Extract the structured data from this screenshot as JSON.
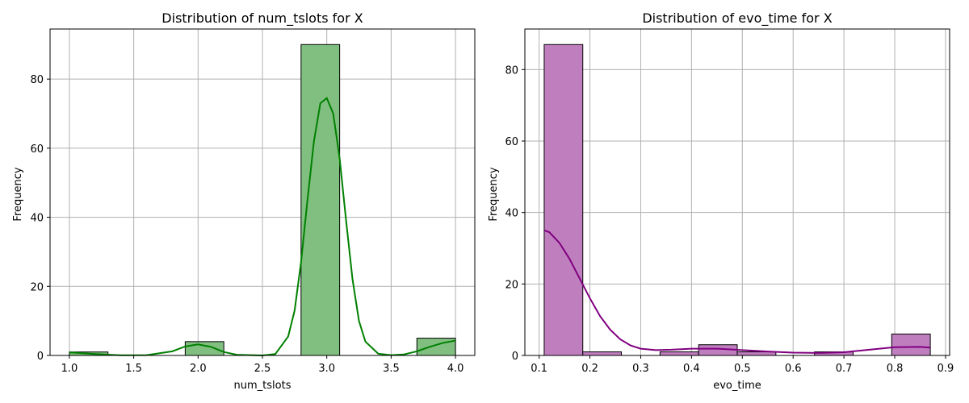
{
  "chart_data": [
    {
      "type": "bar",
      "title": "Distribution of num_tslots for X",
      "xlabel": "num_tslots",
      "ylabel": "Frequency",
      "xlim": [
        0.85,
        4.15
      ],
      "ylim": [
        0,
        94.5
      ],
      "xticks": [
        1.0,
        1.5,
        2.0,
        2.5,
        3.0,
        3.5,
        4.0
      ],
      "xtick_labels": [
        "1.0",
        "1.5",
        "2.0",
        "2.5",
        "3.0",
        "3.5",
        "4.0"
      ],
      "yticks": [
        0,
        20,
        40,
        60,
        80
      ],
      "ytick_labels": [
        "0",
        "20",
        "40",
        "60",
        "80"
      ],
      "grid": true,
      "bin_edges": [
        1.0,
        1.3,
        1.6,
        1.9,
        2.2,
        2.5,
        2.8,
        3.1,
        3.4,
        3.7,
        4.0
      ],
      "counts": [
        1,
        0,
        0,
        4,
        0,
        0,
        90,
        0,
        0,
        5
      ],
      "bar_color": "#80bf80",
      "bar_edge": "#000000",
      "kde": {
        "color": "#008000",
        "x": [
          1.0,
          1.2,
          1.4,
          1.6,
          1.8,
          1.9,
          2.0,
          2.1,
          2.2,
          2.3,
          2.5,
          2.6,
          2.7,
          2.75,
          2.8,
          2.85,
          2.9,
          2.95,
          3.0,
          3.05,
          3.1,
          3.15,
          3.2,
          3.25,
          3.3,
          3.4,
          3.5,
          3.6,
          3.7,
          3.8,
          3.9,
          4.0
        ],
        "y": [
          0.9,
          0.4,
          0.05,
          0.1,
          1.2,
          2.6,
          3.2,
          2.5,
          1.0,
          0.2,
          0.0,
          0.4,
          5.5,
          13,
          27,
          45,
          62,
          73,
          74.5,
          70,
          57,
          39,
          22,
          10,
          4,
          0.5,
          0.1,
          0.3,
          1.2,
          2.5,
          3.6,
          4.3
        ]
      }
    },
    {
      "type": "bar",
      "title": "Distribution of evo_time for X",
      "xlabel": "evo_time",
      "ylabel": "Frequency",
      "xlim": [
        0.072,
        0.908
      ],
      "ylim": [
        0,
        91.35
      ],
      "xticks": [
        0.1,
        0.2,
        0.3,
        0.4,
        0.5,
        0.6,
        0.7,
        0.8,
        0.9
      ],
      "xtick_labels": [
        "0.1",
        "0.2",
        "0.3",
        "0.4",
        "0.5",
        "0.6",
        "0.7",
        "0.8",
        "0.9"
      ],
      "yticks": [
        0,
        20,
        40,
        60,
        80
      ],
      "ytick_labels": [
        "0",
        "20",
        "40",
        "60",
        "80"
      ],
      "grid": true,
      "bin_edges": [
        0.11,
        0.186,
        0.262,
        0.338,
        0.414,
        0.49,
        0.566,
        0.642,
        0.718,
        0.794,
        0.87
      ],
      "counts": [
        87,
        1,
        0,
        1,
        3,
        1,
        0,
        1,
        0,
        6
      ],
      "bar_color": "#bf7fbf",
      "bar_edge": "#000000",
      "kde": {
        "color": "#800080",
        "x": [
          0.11,
          0.12,
          0.14,
          0.16,
          0.18,
          0.2,
          0.22,
          0.24,
          0.26,
          0.28,
          0.3,
          0.33,
          0.36,
          0.4,
          0.45,
          0.5,
          0.55,
          0.6,
          0.65,
          0.7,
          0.75,
          0.8,
          0.85,
          0.87
        ],
        "y": [
          35,
          34.5,
          31.5,
          27,
          21.5,
          16,
          11,
          7.2,
          4.5,
          2.8,
          1.9,
          1.5,
          1.6,
          1.9,
          1.9,
          1.5,
          1.1,
          0.8,
          0.7,
          0.9,
          1.6,
          2.3,
          2.4,
          2.2
        ]
      }
    }
  ]
}
